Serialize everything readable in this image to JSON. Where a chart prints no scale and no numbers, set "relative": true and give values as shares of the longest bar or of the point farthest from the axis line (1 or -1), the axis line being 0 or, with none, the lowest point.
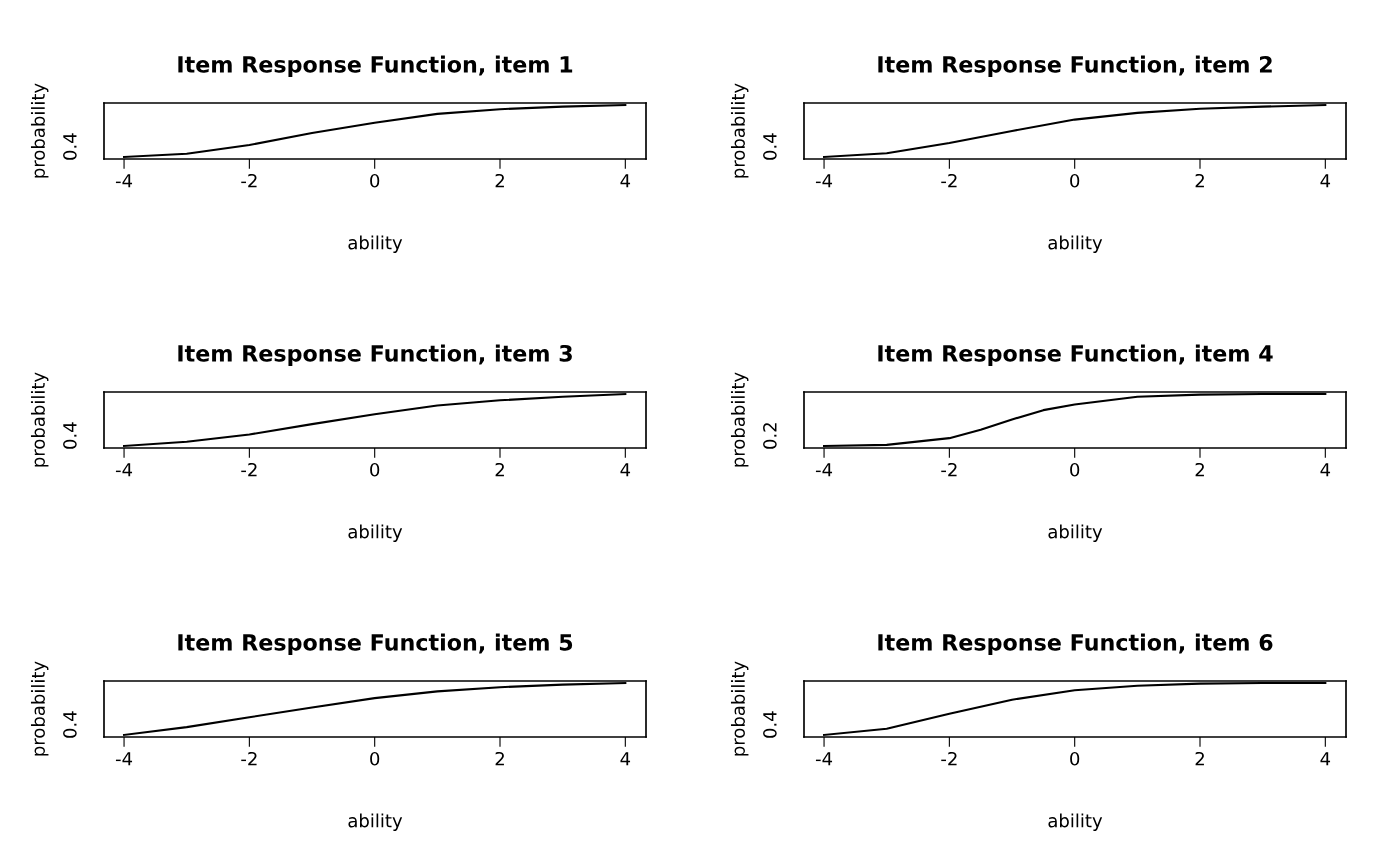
{
  "chart_data": [
    {
      "type": "line",
      "relative": true,
      "title": "Item Response Function, item 1",
      "xlabel": "ability",
      "ylabel": "probability",
      "annotations": [
        "0.4"
      ],
      "x": [
        -4,
        -3,
        -2,
        -1,
        0,
        1,
        2,
        3,
        4
      ],
      "series": [
        {
          "color": "#000000",
          "values": [
            0,
            0.06,
            0.23,
            0.46,
            0.66,
            0.83,
            0.92,
            0.97,
            1
          ]
        }
      ],
      "xlim": [
        -4.32,
        4.33
      ],
      "xticks": [
        -4,
        -2,
        0,
        2,
        4
      ]
    },
    {
      "type": "line",
      "relative": true,
      "title": "Item Response Function, item 2",
      "xlabel": "ability",
      "ylabel": "probability",
      "annotations": [
        "0.4"
      ],
      "x": [
        -4,
        -3,
        -2,
        -1,
        0,
        1,
        2,
        3,
        4
      ],
      "series": [
        {
          "color": "#000000",
          "values": [
            0,
            0.07,
            0.27,
            0.5,
            0.72,
            0.85,
            0.93,
            0.97,
            1
          ]
        }
      ],
      "xlim": [
        -4.32,
        4.33
      ],
      "xticks": [
        -4,
        -2,
        0,
        2,
        4
      ]
    },
    {
      "type": "line",
      "relative": true,
      "title": "Item Response Function, item 3",
      "xlabel": "ability",
      "ylabel": "probability",
      "annotations": [
        "0.4"
      ],
      "x": [
        -4,
        -3,
        -2,
        -1,
        0,
        1,
        2,
        3,
        4
      ],
      "series": [
        {
          "color": "#000000",
          "values": [
            0,
            0.08,
            0.22,
            0.42,
            0.61,
            0.78,
            0.88,
            0.95,
            1
          ]
        }
      ],
      "xlim": [
        -4.32,
        4.33
      ],
      "xticks": [
        -4,
        -2,
        0,
        2,
        4
      ]
    },
    {
      "type": "line",
      "relative": true,
      "title": "Item Response Function, item 4",
      "xlabel": "ability",
      "ylabel": "probability",
      "annotations": [
        "0.2"
      ],
      "x": [
        -4,
        -3,
        -2,
        -1.5,
        -1,
        -0.5,
        0,
        1,
        2,
        3,
        4
      ],
      "series": [
        {
          "color": "#000000",
          "values": [
            0,
            0.02,
            0.15,
            0.31,
            0.51,
            0.69,
            0.8,
            0.95,
            0.99,
            1,
            1
          ]
        }
      ],
      "xlim": [
        -4.32,
        4.33
      ],
      "xticks": [
        -4,
        -2,
        0,
        2,
        4
      ]
    },
    {
      "type": "line",
      "relative": true,
      "title": "Item Response Function, item 5",
      "xlabel": "ability",
      "ylabel": "probability",
      "annotations": [
        "0.4"
      ],
      "x": [
        -4,
        -3,
        -2,
        -1,
        0,
        1,
        2,
        3,
        4
      ],
      "series": [
        {
          "color": "#000000",
          "values": [
            0,
            0.15,
            0.34,
            0.53,
            0.71,
            0.84,
            0.92,
            0.97,
            1
          ]
        }
      ],
      "xlim": [
        -4.32,
        4.33
      ],
      "xticks": [
        -4,
        -2,
        0,
        2,
        4
      ]
    },
    {
      "type": "line",
      "relative": true,
      "title": "Item Response Function, item 6",
      "xlabel": "ability",
      "ylabel": "probability",
      "annotations": [
        "0.4"
      ],
      "x": [
        -4,
        -3,
        -2,
        -1,
        0,
        1,
        2,
        3,
        4
      ],
      "series": [
        {
          "color": "#000000",
          "values": [
            0,
            0.12,
            0.41,
            0.68,
            0.86,
            0.95,
            0.99,
            1,
            1
          ]
        }
      ],
      "xlim": [
        -4.32,
        4.33
      ],
      "xticks": [
        -4,
        -2,
        0,
        2,
        4
      ]
    }
  ]
}
